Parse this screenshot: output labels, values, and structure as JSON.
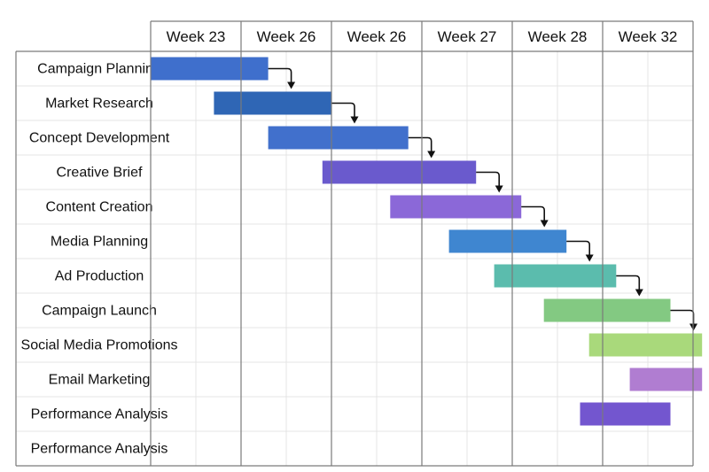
{
  "chart_data": {
    "type": "gantt",
    "week_headers": [
      "Week 23",
      "Week 26",
      "Week 26",
      "Week 27",
      "Week 28",
      "Week 32"
    ],
    "tasks": [
      {
        "name": "Campaign Planning",
        "start": 0.0,
        "end": 1.3,
        "color": "#3f6fcc"
      },
      {
        "name": "Market Research",
        "start": 0.7,
        "end": 2.0,
        "color": "#2f66b5"
      },
      {
        "name": "Concept Development",
        "start": 1.3,
        "end": 2.85,
        "color": "#4170cc"
      },
      {
        "name": "Creative Brief",
        "start": 1.9,
        "end": 3.6,
        "color": "#6a5acd"
      },
      {
        "name": "Content Creation",
        "start": 2.65,
        "end": 4.1,
        "color": "#8b68d8"
      },
      {
        "name": "Media Planning",
        "start": 3.3,
        "end": 4.6,
        "color": "#3f86d0"
      },
      {
        "name": "Ad Production",
        "start": 3.8,
        "end": 5.15,
        "color": "#5bbcad"
      },
      {
        "name": "Campaign Launch",
        "start": 4.35,
        "end": 5.75,
        "color": "#83c982"
      },
      {
        "name": "Social Media Promotions",
        "start": 4.85,
        "end": 6.1,
        "color": "#a9d97b"
      },
      {
        "name": "Email Marketing",
        "start": 5.3,
        "end": 6.1,
        "color": "#b07dd1"
      },
      {
        "name": "Performance Analysis",
        "start": 4.75,
        "end": 5.75,
        "color": "#7356cf"
      },
      {
        "name": "Performance Analysis",
        "start": null,
        "end": null,
        "color": null
      }
    ],
    "dependencies": [
      [
        0,
        1
      ],
      [
        1,
        2
      ],
      [
        2,
        3
      ],
      [
        3,
        4
      ],
      [
        4,
        5
      ],
      [
        5,
        6
      ],
      [
        6,
        7
      ],
      [
        7,
        8
      ]
    ]
  }
}
